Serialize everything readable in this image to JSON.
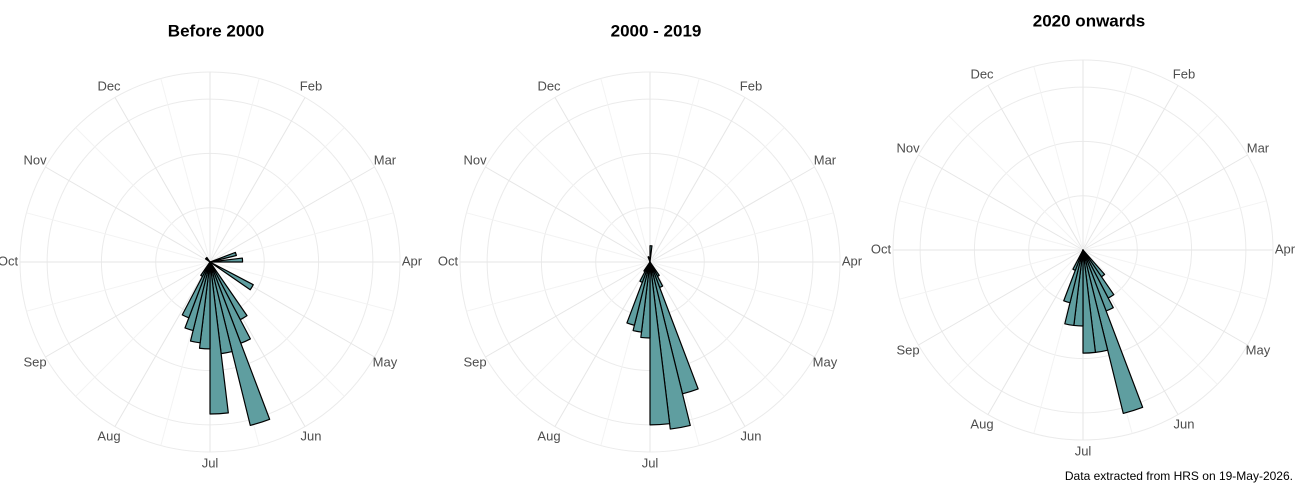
{
  "chart_data": [
    {
      "type": "polar_bar",
      "title": "Before 2000",
      "categories": [
        null,
        "Feb",
        "Mar",
        "Apr",
        "May",
        "Jun",
        "Jul",
        "Aug",
        "Sep",
        "Oct",
        "Nov",
        "Dec"
      ],
      "x": [
        11,
        13,
        18,
        22,
        23,
        24,
        25,
        26,
        27,
        28,
        29,
        30,
        31,
        45,
        47
      ],
      "values": [
        5,
        6,
        9,
        12,
        16,
        31,
        17,
        28,
        16,
        15,
        13,
        11,
        3,
        1,
        1
      ],
      "xlim": [
        0,
        52
      ],
      "ylim": [
        0,
        35
      ],
      "yticks": [
        10,
        20,
        30
      ],
      "color": "#5f9ea0"
    },
    {
      "type": "polar_bar",
      "title": "2000 - 2019",
      "categories": [
        null,
        "Feb",
        "Mar",
        "Apr",
        "May",
        "Jun",
        "Jul",
        "Aug",
        "Sep",
        "Oct",
        "Nov",
        "Dec"
      ],
      "x": [
        1,
        22,
        23,
        24,
        25,
        26,
        27,
        28,
        29,
        30,
        31,
        50
      ],
      "values": [
        3,
        3,
        5,
        25,
        31,
        30,
        14,
        13,
        12,
        4,
        2,
        1
      ],
      "xlim": [
        0,
        52
      ],
      "ylim": [
        0,
        35
      ],
      "yticks": [
        10,
        20,
        30
      ],
      "color": "#5f9ea0"
    },
    {
      "type": "polar_bar",
      "title": "2020 onwards",
      "categories": [
        null,
        "Feb",
        "Mar",
        "Apr",
        "May",
        "Jun",
        "Jul",
        "Aug",
        "Sep",
        "Oct",
        "Nov",
        "Dec"
      ],
      "x": [
        21,
        22,
        23,
        24,
        25,
        26,
        27,
        28,
        29,
        30
      ],
      "values": [
        6,
        10,
        12,
        31,
        19,
        19,
        14,
        14,
        10,
        4
      ],
      "xlim": [
        0,
        52
      ],
      "ylim": [
        0,
        35
      ],
      "yticks": [
        10,
        20,
        30
      ],
      "color": "#5f9ea0"
    }
  ],
  "caption": "Data extracted from HRS on 19-May-2026."
}
